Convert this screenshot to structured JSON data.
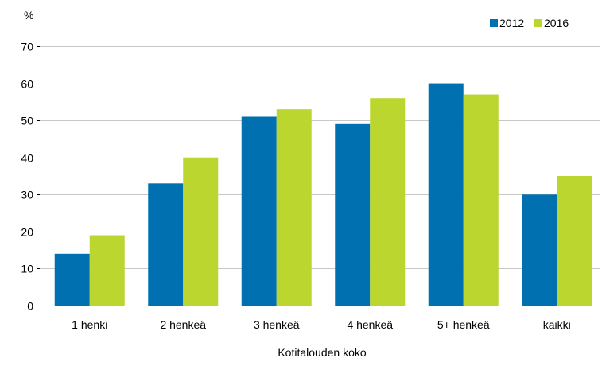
{
  "chart_data": {
    "type": "bar",
    "title": "",
    "ylabel": "%",
    "xlabel": "Kotitalouden koko",
    "ylim": [
      0,
      70
    ],
    "yticks": [
      0,
      10,
      20,
      30,
      40,
      50,
      60,
      70
    ],
    "grid": true,
    "legend_position": "top-right",
    "categories": [
      "1 henki",
      "2 henkeä",
      "3 henkeä",
      "4 henkeä",
      "5+ henkeä",
      "kaikki"
    ],
    "series": [
      {
        "name": "2012",
        "color": "#0070b0",
        "values": [
          14,
          33,
          51,
          49,
          60,
          30
        ]
      },
      {
        "name": "2016",
        "color": "#bcd630",
        "values": [
          19,
          40,
          53,
          56,
          57,
          35
        ]
      }
    ]
  }
}
